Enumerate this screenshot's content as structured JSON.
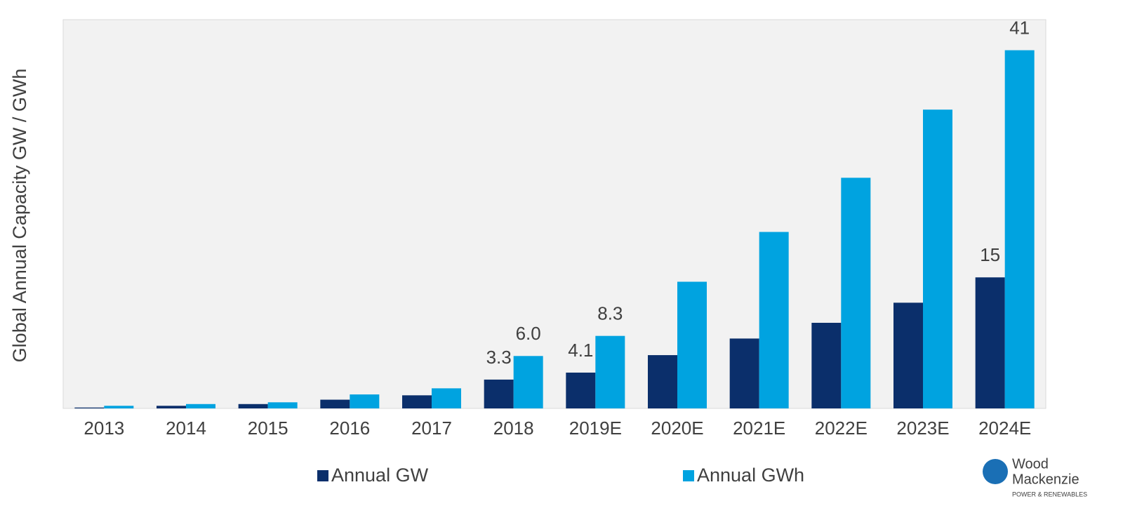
{
  "chart_data": {
    "type": "bar",
    "y_axis_label": "Global Annual Capacity GW / GWh",
    "categories": [
      "2013",
      "2014",
      "2015",
      "2016",
      "2017",
      "2018",
      "2019E",
      "2020E",
      "2021E",
      "2022E",
      "2023E",
      "2024E"
    ],
    "series": [
      {
        "name": "Annual GW",
        "color": "#0b2f6b",
        "values": [
          0.1,
          0.3,
          0.5,
          1.0,
          1.5,
          3.3,
          4.1,
          6.1,
          8.0,
          9.8,
          12.1,
          15
        ],
        "value_labels": [
          null,
          null,
          null,
          null,
          null,
          "3.3",
          "4.1",
          null,
          null,
          null,
          null,
          "15"
        ]
      },
      {
        "name": "Annual GWh",
        "color": "#00a3e0",
        "values": [
          0.3,
          0.5,
          0.7,
          1.6,
          2.3,
          6.0,
          8.3,
          14.5,
          20.2,
          26.4,
          34.2,
          41
        ],
        "value_labels": [
          null,
          null,
          null,
          null,
          null,
          "6.0",
          "8.3",
          null,
          null,
          null,
          null,
          "41"
        ]
      }
    ],
    "ylim": [
      0,
      44.5
    ],
    "logo_text": [
      "Wood",
      "Mackenzie",
      "POWER & RENEWABLES"
    ]
  }
}
